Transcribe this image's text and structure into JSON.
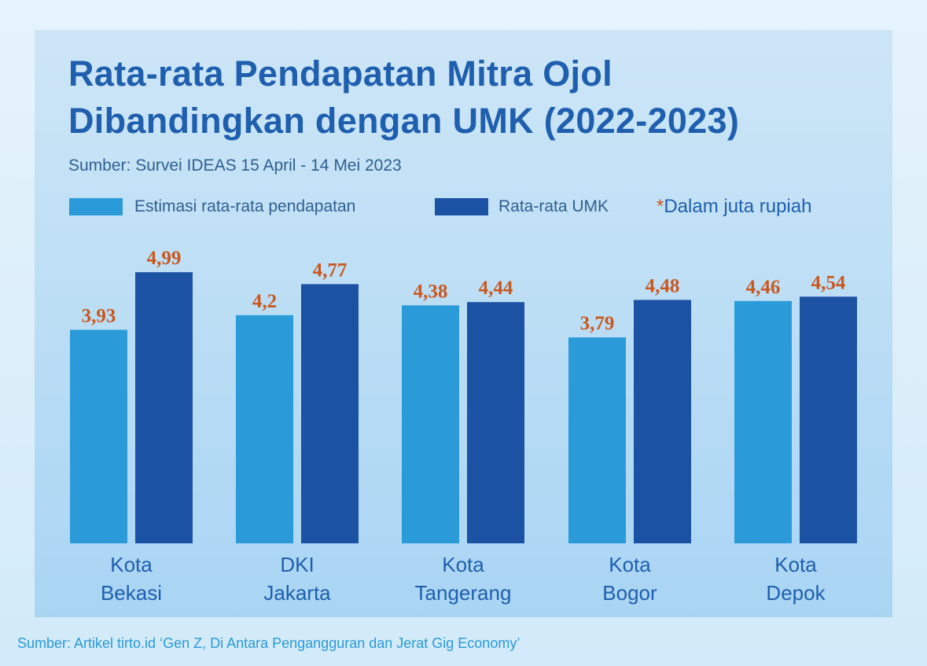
{
  "title": {
    "line1": "Rata-rata Pendapatan Mitra Ojol",
    "line2": "Dibandingkan dengan UMK (2022-2023)"
  },
  "subtitle": "Sumber: Survei IDEAS 15 April - 14 Mei 2023",
  "unit_note": {
    "star": "*",
    "text": "Dalam juta rupiah"
  },
  "footer": "Sumber: Artikel tirto.id ‘Gen Z, Di Antara Pengangguran dan Jerat Gig Economy’",
  "colors": {
    "series1": "#2b9ad8",
    "series2": "#1c52a3",
    "value_label": "#c9581f"
  },
  "chart_data": {
    "type": "bar",
    "title": "Rata-rata Pendapatan Mitra Ojol Dibandingkan dengan UMK (2022-2023)",
    "categories": [
      [
        "Kota",
        "Bekasi"
      ],
      [
        "DKI",
        "Jakarta"
      ],
      [
        "Kota",
        "Tangerang"
      ],
      [
        "Kota",
        "Bogor"
      ],
      [
        "Kota",
        "Depok"
      ]
    ],
    "series": [
      {
        "name": "Estimasi rata-rata pendapatan",
        "values": [
          3.93,
          4.2,
          4.38,
          3.79,
          4.46
        ],
        "labels": [
          "3,93",
          "4,2",
          "4,38",
          "3,79",
          "4,46"
        ]
      },
      {
        "name": "Rata-rata UMK",
        "values": [
          4.99,
          4.77,
          4.44,
          4.48,
          4.54
        ],
        "labels": [
          "4,99",
          "4,77",
          "4,44",
          "4,48",
          "4,54"
        ]
      }
    ],
    "ylim": [
      0,
      5.55
    ],
    "grid": false,
    "legend": "top-left"
  }
}
